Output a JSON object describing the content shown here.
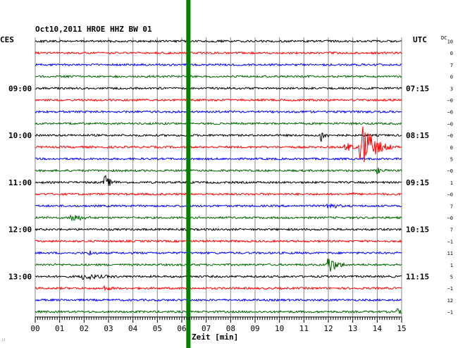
{
  "chart_data": {
    "type": "line",
    "title": "Oct10,2011   HROE HHZ BW 01",
    "left_label": "CES",
    "right_label": "UTC",
    "dc_label": "DC",
    "xlabel": "Zeit [min]",
    "xlim": [
      0,
      15
    ],
    "x_ticks": [
      "00",
      "01",
      "02",
      "03",
      "04",
      "05",
      "06",
      "07",
      "08",
      "09",
      "10",
      "11",
      "12",
      "13",
      "14",
      "15"
    ],
    "grid": true,
    "trace_colors": [
      "#000000",
      "#ff0000",
      "#0000ff",
      "#006400"
    ],
    "marker_color": "#008000",
    "marker_minute": 6.27,
    "traces": [
      {
        "left": "",
        "right": "",
        "dc": "10",
        "color": "#000000"
      },
      {
        "left": "",
        "right": "",
        "dc": "0",
        "color": "#ff0000"
      },
      {
        "left": "",
        "right": "",
        "dc": "7",
        "color": "#0000ff"
      },
      {
        "left": "",
        "right": "",
        "dc": "0",
        "color": "#006400"
      },
      {
        "left": "09:00",
        "right": "07:15",
        "dc": "3",
        "color": "#000000"
      },
      {
        "left": "",
        "right": "",
        "dc": "−0",
        "color": "#ff0000"
      },
      {
        "left": "",
        "right": "",
        "dc": "−0",
        "color": "#0000ff"
      },
      {
        "left": "",
        "right": "",
        "dc": "−0",
        "color": "#006400"
      },
      {
        "left": "10:00",
        "right": "08:15",
        "dc": "−0",
        "color": "#000000"
      },
      {
        "left": "",
        "right": "",
        "dc": "0",
        "color": "#ff0000"
      },
      {
        "left": "",
        "right": "",
        "dc": "5",
        "color": "#0000ff"
      },
      {
        "left": "",
        "right": "",
        "dc": "−0",
        "color": "#006400"
      },
      {
        "left": "11:00",
        "right": "09:15",
        "dc": "1",
        "color": "#000000"
      },
      {
        "left": "",
        "right": "",
        "dc": "−0",
        "color": "#ff0000"
      },
      {
        "left": "",
        "right": "",
        "dc": "7",
        "color": "#0000ff"
      },
      {
        "left": "",
        "right": "",
        "dc": "−0",
        "color": "#006400"
      },
      {
        "left": "12:00",
        "right": "10:15",
        "dc": "7",
        "color": "#000000"
      },
      {
        "left": "",
        "right": "",
        "dc": "−1",
        "color": "#ff0000"
      },
      {
        "left": "",
        "right": "",
        "dc": "11",
        "color": "#0000ff"
      },
      {
        "left": "",
        "right": "",
        "dc": "1",
        "color": "#006400"
      },
      {
        "left": "13:00",
        "right": "11:15",
        "dc": "5",
        "color": "#000000"
      },
      {
        "left": "",
        "right": "",
        "dc": "−1",
        "color": "#ff0000"
      },
      {
        "left": "",
        "right": "",
        "dc": "12",
        "color": "#0000ff"
      },
      {
        "left": "",
        "right": "",
        "dc": "−1",
        "color": "#006400"
      }
    ],
    "events": [
      {
        "trace": 8,
        "minute": 11.7,
        "amplitude": 10,
        "duration": 0.4
      },
      {
        "trace": 9,
        "minute": 13.4,
        "amplitude": 34,
        "duration": 1.3
      },
      {
        "trace": 9,
        "minute": 12.7,
        "amplitude": 8,
        "duration": 0.6
      },
      {
        "trace": 11,
        "minute": 14.0,
        "amplitude": 4,
        "duration": 0.5
      },
      {
        "trace": 12,
        "minute": 2.85,
        "amplitude": 10,
        "duration": 0.6
      },
      {
        "trace": 13,
        "minute": 12.95,
        "amplitude": 3,
        "duration": 0.2
      },
      {
        "trace": 14,
        "minute": 12.0,
        "amplitude": 7,
        "duration": 0.6
      },
      {
        "trace": 15,
        "minute": 1.5,
        "amplitude": 7,
        "duration": 0.8
      },
      {
        "trace": 18,
        "minute": 2.2,
        "amplitude": 4,
        "duration": 0.4
      },
      {
        "trace": 19,
        "minute": 12.0,
        "amplitude": 14,
        "duration": 0.8
      },
      {
        "trace": 20,
        "minute": 2.0,
        "amplitude": 4,
        "duration": 1.5
      },
      {
        "trace": 21,
        "minute": 2.8,
        "amplitude": 3,
        "duration": 0.6
      },
      {
        "trace": 23,
        "minute": 14.8,
        "amplitude": 5,
        "duration": 0.3
      }
    ]
  }
}
